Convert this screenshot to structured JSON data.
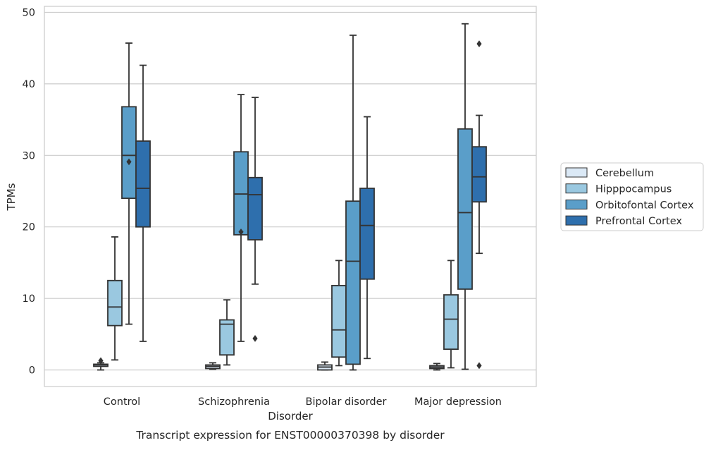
{
  "caption": "Transcript expression for ENST00000370398 by disorder",
  "chart_data": {
    "type": "boxplot",
    "xlabel": "Disorder",
    "ylabel": "TPMs",
    "ylim": [
      -2.3,
      50.8
    ],
    "yticks": [
      0,
      10,
      20,
      30,
      40,
      50
    ],
    "grid": "horizontal",
    "legend_position": "right",
    "categories": [
      "Control",
      "Schizophrenia",
      "Bipolar disorder",
      "Major depression"
    ],
    "series": [
      {
        "name": "Cerebellum",
        "color": "#dbe9f6",
        "boxes": [
          {
            "whislo": 0.0,
            "q1": 0.5,
            "med": 0.7,
            "q3": 0.8,
            "whishi": 1.0,
            "fliers": [
              1.3
            ]
          },
          {
            "whislo": 0.1,
            "q1": 0.2,
            "med": 0.5,
            "q3": 0.7,
            "whishi": 1.0,
            "fliers": []
          },
          {
            "whislo": 0.0,
            "q1": 0.0,
            "med": 0.4,
            "q3": 0.7,
            "whishi": 1.1,
            "fliers": []
          },
          {
            "whislo": 0.0,
            "q1": 0.2,
            "med": 0.4,
            "q3": 0.6,
            "whishi": 0.9,
            "fliers": []
          }
        ]
      },
      {
        "name": "Hipppocampus",
        "color": "#9ac8e0",
        "boxes": [
          {
            "whislo": 1.4,
            "q1": 6.2,
            "med": 8.8,
            "q3": 12.5,
            "whishi": 18.6,
            "fliers": []
          },
          {
            "whislo": 0.7,
            "q1": 2.1,
            "med": 6.4,
            "q3": 7.0,
            "whishi": 9.8,
            "fliers": []
          },
          {
            "whislo": 0.6,
            "q1": 1.8,
            "med": 5.6,
            "q3": 11.8,
            "whishi": 15.3,
            "fliers": []
          },
          {
            "whislo": 0.3,
            "q1": 2.9,
            "med": 7.1,
            "q3": 10.5,
            "whishi": 15.3,
            "fliers": []
          }
        ]
      },
      {
        "name": "Orbitofontal Cortex",
        "color": "#5a9ec9",
        "boxes": [
          {
            "whislo": 6.4,
            "q1": 24.0,
            "med": 30.0,
            "q3": 36.8,
            "whishi": 45.7,
            "fliers": [
              29.1
            ]
          },
          {
            "whislo": 4.0,
            "q1": 18.9,
            "med": 24.6,
            "q3": 30.5,
            "whishi": 38.5,
            "fliers": [
              19.3
            ]
          },
          {
            "whislo": 0.0,
            "q1": 0.8,
            "med": 15.2,
            "q3": 23.6,
            "whishi": 46.8,
            "fliers": []
          },
          {
            "whislo": 0.1,
            "q1": 11.3,
            "med": 22.0,
            "q3": 33.7,
            "whishi": 48.4,
            "fliers": []
          }
        ]
      },
      {
        "name": "Prefrontal Cortex",
        "color": "#2e6fad",
        "boxes": [
          {
            "whislo": 4.0,
            "q1": 20.0,
            "med": 25.4,
            "q3": 32.0,
            "whishi": 42.6,
            "fliers": []
          },
          {
            "whislo": 12.0,
            "q1": 18.2,
            "med": 24.5,
            "q3": 26.9,
            "whishi": 38.1,
            "fliers": [
              4.4
            ]
          },
          {
            "whislo": 1.6,
            "q1": 12.7,
            "med": 20.2,
            "q3": 25.4,
            "whishi": 35.4,
            "fliers": []
          },
          {
            "whislo": 16.3,
            "q1": 23.5,
            "med": 27.0,
            "q3": 31.2,
            "whishi": 35.6,
            "fliers": [
              0.6,
              45.6
            ]
          }
        ]
      }
    ]
  }
}
